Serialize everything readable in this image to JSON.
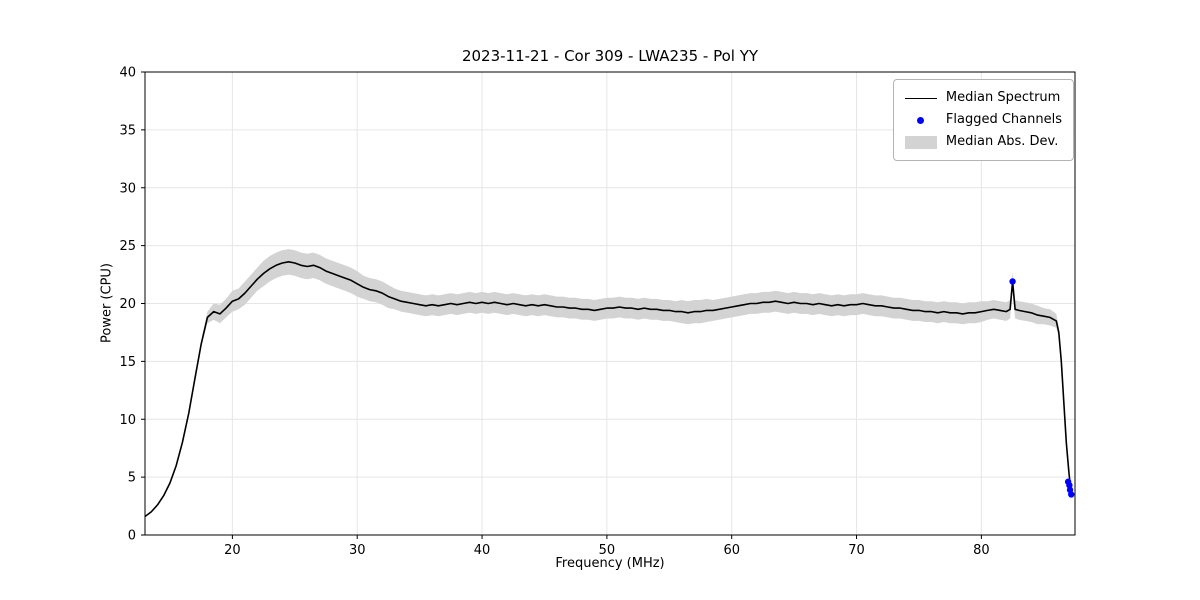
{
  "title": "2023-11-21 - Cor 309 - LWA235 - Pol YY",
  "chart_data": {
    "type": "line",
    "title": "2023-11-21 - Cor 309 - LWA235 - Pol YY",
    "xlabel": "Frequency (MHz)",
    "ylabel": "Power (CPU)",
    "xlim": [
      13,
      87.5
    ],
    "ylim": [
      0,
      40
    ],
    "x_ticks": [
      20,
      30,
      40,
      50,
      60,
      70,
      80
    ],
    "y_ticks": [
      0,
      5,
      10,
      15,
      20,
      25,
      30,
      35,
      40
    ],
    "grid": true,
    "colors": {
      "line": "#000000",
      "flagged": "#0000ff",
      "band": "#d3d3d3",
      "grid": "#e6e6e6",
      "spine": "#000000"
    },
    "legend": {
      "position": "upper right",
      "entries": [
        {
          "label": "Median Spectrum",
          "type": "line",
          "color": "#000000"
        },
        {
          "label": "Flagged Channels",
          "type": "marker",
          "color": "#0000ff"
        },
        {
          "label": "Median Abs. Dev.",
          "type": "patch",
          "color": "#d3d3d3"
        }
      ]
    },
    "series": [
      {
        "name": "Median Spectrum",
        "note": "points are [frequency_MHz, power_CPU, median_abs_dev]",
        "points": [
          [
            13,
            1.6,
            0
          ],
          [
            13.5,
            2.0,
            0
          ],
          [
            14,
            2.6,
            0
          ],
          [
            14.5,
            3.4,
            0
          ],
          [
            15,
            4.5,
            0.1
          ],
          [
            15.5,
            6.0,
            0.1
          ],
          [
            16,
            8.0,
            0.15
          ],
          [
            16.5,
            10.5,
            0.2
          ],
          [
            17,
            13.5,
            0.25
          ],
          [
            17.5,
            16.5,
            0.3
          ],
          [
            18,
            18.8,
            0.5
          ],
          [
            18.5,
            19.3,
            0.7
          ],
          [
            19,
            19.1,
            0.8
          ],
          [
            19.5,
            19.6,
            0.8
          ],
          [
            20,
            20.2,
            0.9
          ],
          [
            20.5,
            20.4,
            0.9
          ],
          [
            21,
            20.9,
            1.0
          ],
          [
            21.5,
            21.5,
            1.0
          ],
          [
            22,
            22.1,
            1.0
          ],
          [
            22.5,
            22.6,
            1.1
          ],
          [
            23,
            23.0,
            1.1
          ],
          [
            23.5,
            23.3,
            1.1
          ],
          [
            24,
            23.5,
            1.1
          ],
          [
            24.5,
            23.6,
            1.1
          ],
          [
            25,
            23.5,
            1.1
          ],
          [
            25.5,
            23.3,
            1.1
          ],
          [
            26,
            23.2,
            1.1
          ],
          [
            26.5,
            23.3,
            1.1
          ],
          [
            27,
            23.1,
            1.1
          ],
          [
            27.5,
            22.8,
            1.1
          ],
          [
            28,
            22.6,
            1.1
          ],
          [
            28.5,
            22.4,
            1.1
          ],
          [
            29,
            22.2,
            1.1
          ],
          [
            29.5,
            22.0,
            1.1
          ],
          [
            30,
            21.7,
            1.1
          ],
          [
            30.5,
            21.4,
            1.0
          ],
          [
            31,
            21.2,
            1.0
          ],
          [
            31.5,
            21.1,
            1.0
          ],
          [
            32,
            20.9,
            1.0
          ],
          [
            32.5,
            20.6,
            1.0
          ],
          [
            33,
            20.4,
            0.9
          ],
          [
            33.5,
            20.2,
            0.9
          ],
          [
            34,
            20.1,
            0.9
          ],
          [
            34.5,
            20.0,
            0.9
          ],
          [
            35,
            19.9,
            0.9
          ],
          [
            35.5,
            19.8,
            0.9
          ],
          [
            36,
            19.9,
            0.9
          ],
          [
            36.5,
            19.8,
            0.9
          ],
          [
            37,
            19.9,
            0.9
          ],
          [
            37.5,
            20.0,
            0.9
          ],
          [
            38,
            19.9,
            0.9
          ],
          [
            38.5,
            20.0,
            0.9
          ],
          [
            39,
            20.1,
            0.9
          ],
          [
            39.5,
            20.0,
            0.9
          ],
          [
            40,
            20.1,
            0.9
          ],
          [
            40.5,
            20.0,
            0.9
          ],
          [
            41,
            20.1,
            0.9
          ],
          [
            41.5,
            20.0,
            0.9
          ],
          [
            42,
            19.9,
            0.9
          ],
          [
            42.5,
            20.0,
            0.9
          ],
          [
            43,
            19.9,
            0.9
          ],
          [
            43.5,
            19.8,
            0.9
          ],
          [
            44,
            19.9,
            0.9
          ],
          [
            44.5,
            19.8,
            0.9
          ],
          [
            45,
            19.9,
            0.9
          ],
          [
            45.5,
            19.8,
            0.9
          ],
          [
            46,
            19.7,
            0.9
          ],
          [
            46.5,
            19.7,
            0.9
          ],
          [
            47,
            19.6,
            0.9
          ],
          [
            47.5,
            19.6,
            0.9
          ],
          [
            48,
            19.5,
            0.9
          ],
          [
            48.5,
            19.5,
            0.9
          ],
          [
            49,
            19.4,
            0.9
          ],
          [
            49.5,
            19.5,
            0.9
          ],
          [
            50,
            19.6,
            0.9
          ],
          [
            50.5,
            19.6,
            0.9
          ],
          [
            51,
            19.7,
            0.9
          ],
          [
            51.5,
            19.6,
            0.9
          ],
          [
            52,
            19.6,
            0.9
          ],
          [
            52.5,
            19.5,
            0.9
          ],
          [
            53,
            19.6,
            0.9
          ],
          [
            53.5,
            19.5,
            0.9
          ],
          [
            54,
            19.5,
            0.9
          ],
          [
            54.5,
            19.4,
            0.9
          ],
          [
            55,
            19.4,
            0.9
          ],
          [
            55.5,
            19.3,
            0.9
          ],
          [
            56,
            19.3,
            1.0
          ],
          [
            56.5,
            19.2,
            1.0
          ],
          [
            57,
            19.3,
            1.0
          ],
          [
            57.5,
            19.3,
            1.0
          ],
          [
            58,
            19.4,
            1.0
          ],
          [
            58.5,
            19.4,
            0.9
          ],
          [
            59,
            19.5,
            0.9
          ],
          [
            59.5,
            19.6,
            0.9
          ],
          [
            60,
            19.7,
            0.9
          ],
          [
            60.5,
            19.8,
            0.9
          ],
          [
            61,
            19.9,
            0.9
          ],
          [
            61.5,
            20.0,
            0.9
          ],
          [
            62,
            20.0,
            0.9
          ],
          [
            62.5,
            20.1,
            0.9
          ],
          [
            63,
            20.1,
            0.9
          ],
          [
            63.5,
            20.2,
            0.9
          ],
          [
            64,
            20.1,
            0.9
          ],
          [
            64.5,
            20.0,
            0.9
          ],
          [
            65,
            20.1,
            0.9
          ],
          [
            65.5,
            20.0,
            0.9
          ],
          [
            66,
            20.0,
            0.9
          ],
          [
            66.5,
            19.9,
            0.9
          ],
          [
            67,
            20.0,
            0.9
          ],
          [
            67.5,
            19.9,
            0.9
          ],
          [
            68,
            19.8,
            0.9
          ],
          [
            68.5,
            19.9,
            0.9
          ],
          [
            69,
            19.8,
            0.9
          ],
          [
            69.5,
            19.9,
            0.9
          ],
          [
            70,
            19.9,
            0.9
          ],
          [
            70.5,
            20.0,
            0.9
          ],
          [
            71,
            19.9,
            0.9
          ],
          [
            71.5,
            19.8,
            0.9
          ],
          [
            72,
            19.8,
            0.9
          ],
          [
            72.5,
            19.7,
            0.9
          ],
          [
            73,
            19.6,
            0.9
          ],
          [
            73.5,
            19.6,
            0.9
          ],
          [
            74,
            19.5,
            0.9
          ],
          [
            74.5,
            19.4,
            0.9
          ],
          [
            75,
            19.4,
            0.9
          ],
          [
            75.5,
            19.3,
            0.9
          ],
          [
            76,
            19.3,
            0.9
          ],
          [
            76.5,
            19.2,
            0.9
          ],
          [
            77,
            19.3,
            0.9
          ],
          [
            77.5,
            19.2,
            0.9
          ],
          [
            78,
            19.2,
            0.9
          ],
          [
            78.5,
            19.1,
            0.9
          ],
          [
            79,
            19.2,
            0.9
          ],
          [
            79.5,
            19.2,
            0.9
          ],
          [
            80,
            19.3,
            0.9
          ],
          [
            80.5,
            19.4,
            0.8
          ],
          [
            81,
            19.5,
            0.8
          ],
          [
            81.5,
            19.4,
            0.8
          ],
          [
            82,
            19.3,
            0.8
          ],
          [
            82.3,
            19.5,
            0.8
          ],
          [
            82.5,
            21.9,
            0.8
          ],
          [
            82.7,
            19.5,
            0.8
          ],
          [
            83,
            19.4,
            0.8
          ],
          [
            83.5,
            19.3,
            0.8
          ],
          [
            84,
            19.2,
            0.8
          ],
          [
            84.5,
            19.0,
            0.8
          ],
          [
            85,
            18.9,
            0.7
          ],
          [
            85.5,
            18.8,
            0.7
          ],
          [
            86,
            18.5,
            0.6
          ],
          [
            86.2,
            17.5,
            0.4
          ],
          [
            86.4,
            15.0,
            0.3
          ],
          [
            86.6,
            11.5,
            0.2
          ],
          [
            86.8,
            8.0,
            0.1
          ],
          [
            87,
            5.5,
            0.1
          ],
          [
            87.1,
            4.5,
            0
          ],
          [
            87.2,
            3.8,
            0
          ],
          [
            87.3,
            3.3,
            0
          ]
        ]
      }
    ],
    "flagged_channels": [
      [
        82.5,
        21.9
      ],
      [
        86.95,
        4.6
      ],
      [
        87.05,
        4.3
      ],
      [
        87.1,
        3.9
      ],
      [
        87.2,
        3.5
      ]
    ]
  }
}
